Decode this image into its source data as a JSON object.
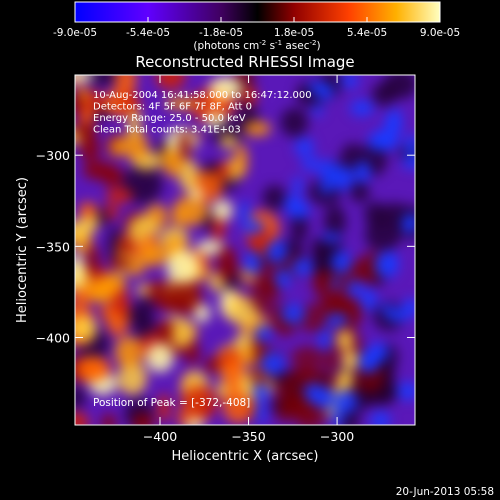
{
  "chart_data": {
    "type": "heatmap",
    "title": "Reconstructed RHESSI Image",
    "xlabel": "Heliocentric X (arcsec)",
    "ylabel": "Heliocentric Y (arcsec)",
    "xlim": [
      -448,
      -256
    ],
    "ylim": [
      -448,
      -256
    ],
    "x_ticks": [
      -400,
      -350,
      -300
    ],
    "y_ticks": [
      -300,
      -350,
      -400
    ],
    "colorbar": {
      "min": -9e-05,
      "max": 9e-05,
      "tick_labels": [
        "-9.0e-05",
        "-5.4e-05",
        "-1.8e-05",
        "1.8e-05",
        "5.4e-05",
        "9.0e-05"
      ],
      "tick_values": [
        -9e-05,
        -5.4e-05,
        -1.8e-05,
        1.8e-05,
        5.4e-05,
        9e-05
      ],
      "units": "(photons cm<sup>-2</sup> s<sup>-1</sup> asec<sup>-2</sup>)",
      "colormap": [
        "#0000ff",
        "#7a00ff",
        "#000000",
        "#c00000",
        "#ff8000",
        "#ffffb0"
      ]
    },
    "annotations": [
      "10-Aug-2004 16:41:58.000 to 16:47:12.000",
      "Detectors: 4F 5F 6F 7F 8F, Att 0",
      "Energy Range: 25.0 - 50.0 keV",
      "Clean     Total counts: 3.41E+03"
    ],
    "peak_label": "Position of Peak = [-372,-408]",
    "peak": [
      -372,
      -408
    ],
    "grid": false,
    "legend": "none"
  },
  "footer_date": "20-Jun-2013 05:58"
}
